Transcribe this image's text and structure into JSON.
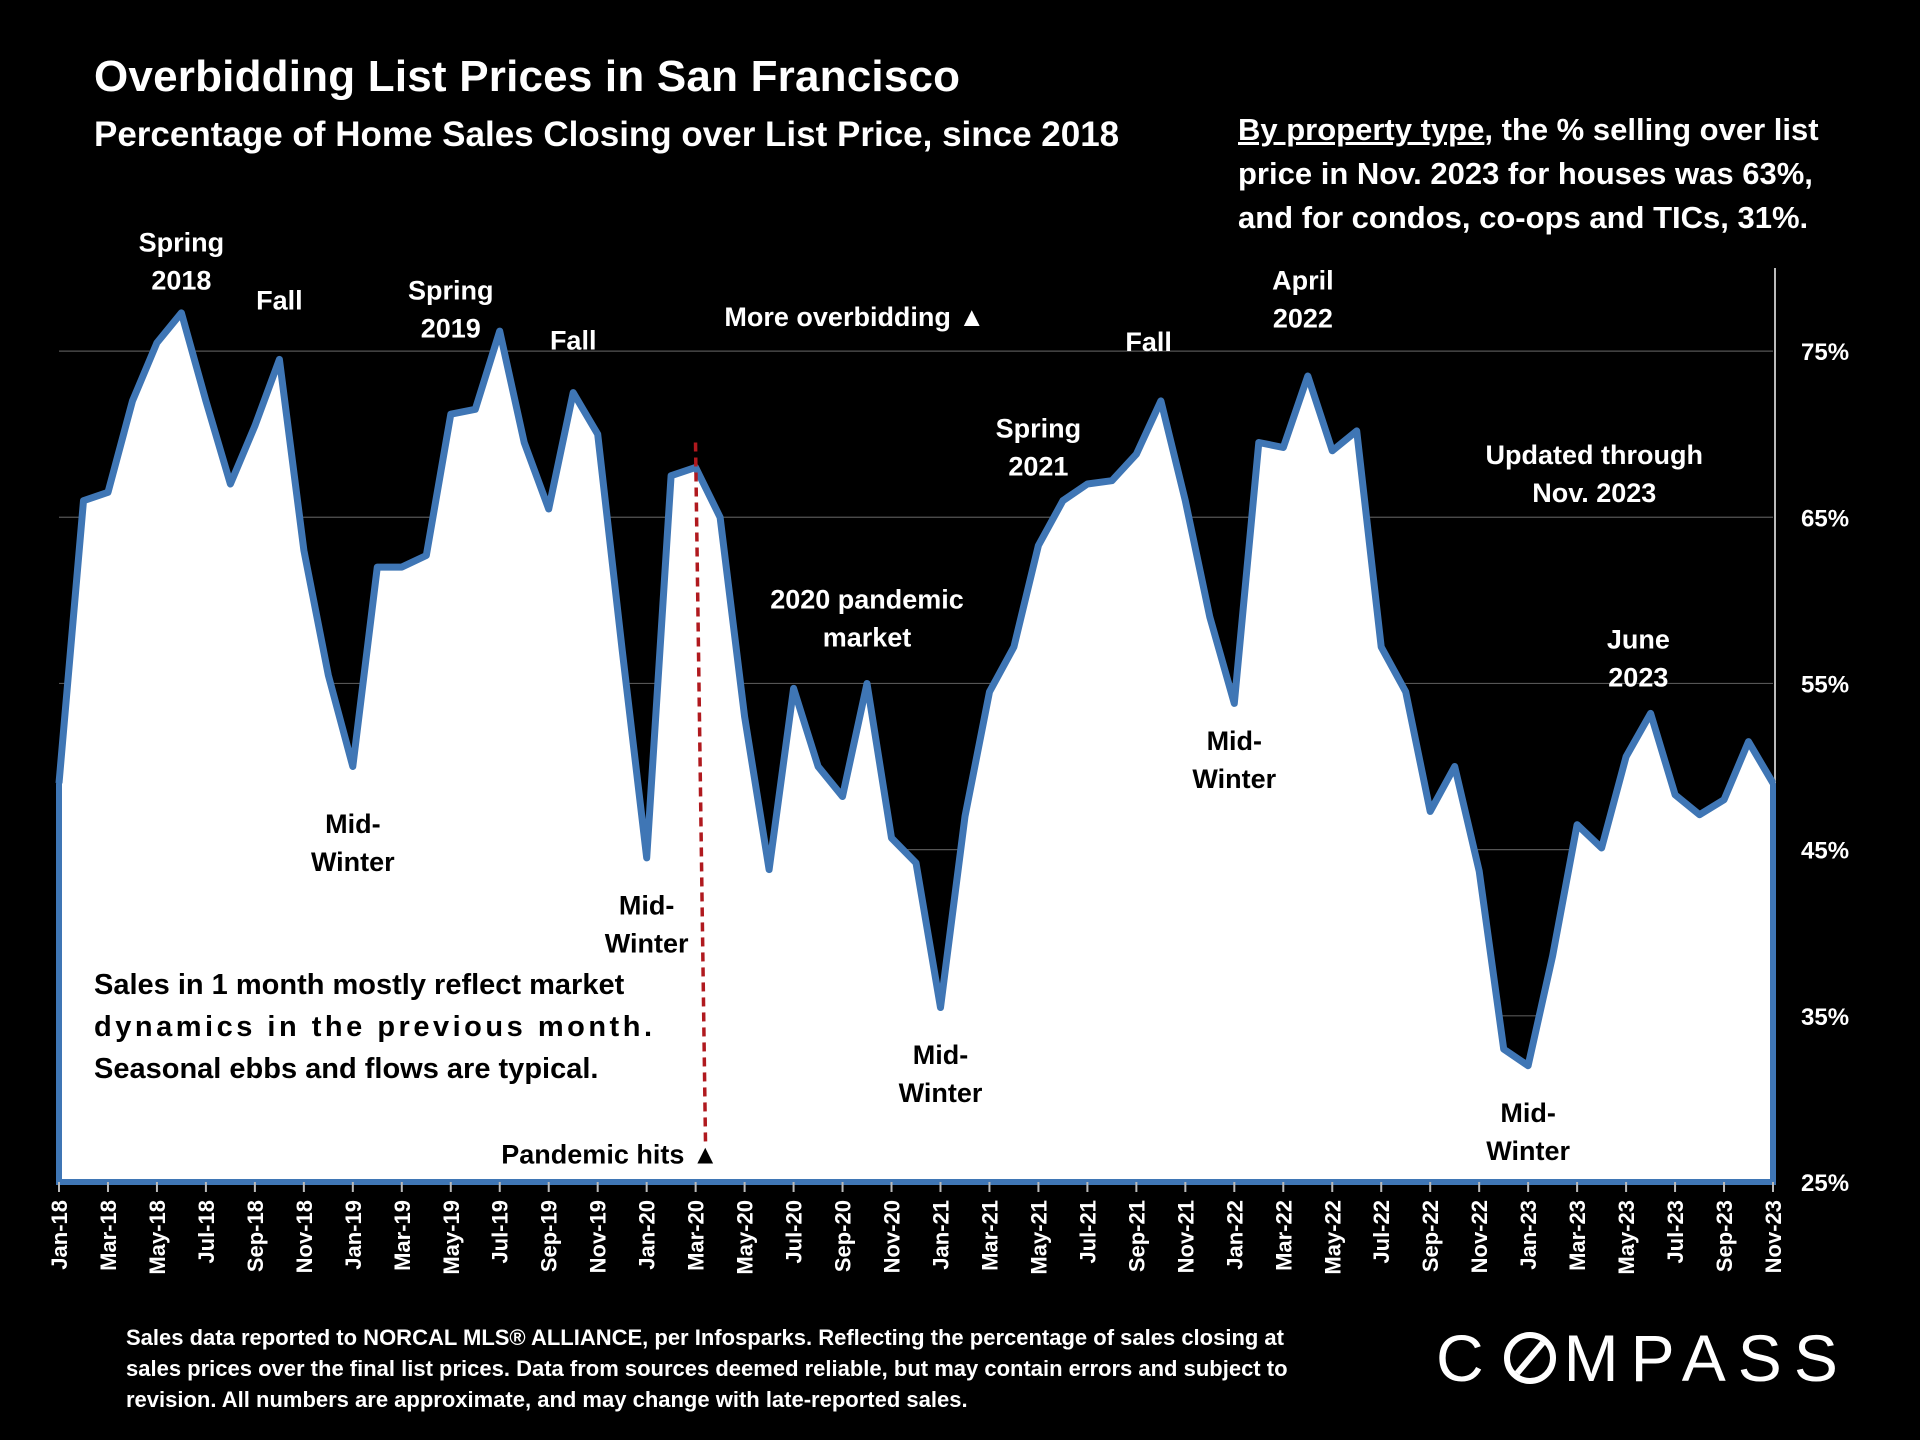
{
  "chart_data": {
    "type": "area",
    "title": "Overbidding List Prices in San Francisco",
    "subtitle": "Percentage of Home Sales Closing over List Price, since 2018",
    "y_unit": "%",
    "ylim": [
      25,
      80
    ],
    "y_ticks": [
      "25%",
      "35%",
      "45%",
      "55%",
      "65%",
      "75%"
    ],
    "grid": true,
    "x_tick_labels": [
      "Jan-18",
      "Mar-18",
      "May-18",
      "Jul-18",
      "Sep-18",
      "Nov-18",
      "Jan-19",
      "Mar-19",
      "May-19",
      "Jul-19",
      "Sep-19",
      "Nov-19",
      "Jan-20",
      "Mar-20",
      "May-20",
      "Jul-20",
      "Sep-20",
      "Nov-20",
      "Jan-21",
      "Mar-21",
      "May-21",
      "Jul-21",
      "Sep-21",
      "Nov-21",
      "Jan-22",
      "Mar-22",
      "May-22",
      "Jul-22",
      "Sep-22",
      "Nov-22",
      "Jan-23",
      "Mar-23",
      "May-23",
      "Jul-23",
      "Sep-23",
      "Nov-23"
    ],
    "series": [
      {
        "name": "",
        "color": "#3f76b5",
        "fill": "#ffffff",
        "values": [
          49,
          66,
          66.5,
          72,
          75.5,
          77.3,
          72,
          67,
          70.5,
          74.5,
          63,
          55.5,
          50,
          62,
          62,
          62.7,
          71.2,
          71.5,
          76.2,
          69.5,
          65.5,
          72.5,
          70,
          57,
          44.5,
          67.5,
          68,
          65,
          53,
          43.8,
          54.7,
          50,
          48.2,
          55,
          45.7,
          44.2,
          35.5,
          47,
          54.5,
          57.2,
          63.3,
          66,
          67,
          67.2,
          68.8,
          72,
          66,
          59,
          53.8,
          69.5,
          69.2,
          73.5,
          69,
          70.2,
          57.2,
          54.5,
          47.3,
          50,
          43.7,
          33,
          32,
          38.6,
          46.5,
          45.1,
          50.6,
          53.2,
          48.3,
          47.1,
          48,
          51.5,
          49
        ]
      }
    ],
    "annotations": [
      {
        "text": [
          "Spring",
          "2018"
        ],
        "x_index": 5,
        "y": 81
      },
      {
        "text": [
          "Fall"
        ],
        "x_index": 9,
        "y": 77.5
      },
      {
        "text": [
          "Mid-",
          "Winter"
        ],
        "x_index": 12,
        "y": 46
      },
      {
        "text": [
          "Spring",
          "2019"
        ],
        "x_index": 16,
        "y": 78.1
      },
      {
        "text": [
          "Fall"
        ],
        "x_index": 21,
        "y": 75.1
      },
      {
        "text": [
          "Mid-",
          "Winter"
        ],
        "x_index": 24,
        "y": 41.1
      },
      {
        "text": [
          "2020 pandemic",
          "market"
        ],
        "x_index": 33,
        "y": 59.5
      },
      {
        "text": [
          "Mid-",
          "Winter"
        ],
        "x_index": 36,
        "y": 32.1
      },
      {
        "text": [
          "Spring",
          "2021"
        ],
        "x_index": 40,
        "y": 69.8
      },
      {
        "text": [
          "Fall"
        ],
        "x_index": 44.5,
        "y": 75
      },
      {
        "text": [
          "Mid-",
          "Winter"
        ],
        "x_index": 48,
        "y": 51
      },
      {
        "text": [
          "April",
          "2022"
        ],
        "x_index": 50.8,
        "y": 78.7
      },
      {
        "text": [
          "Updated through",
          "Nov. 2023"
        ],
        "x_index": 62.7,
        "y": 68.2
      },
      {
        "text": [
          "June",
          "2023"
        ],
        "x_index": 64.5,
        "y": 57.1
      },
      {
        "text": [
          "Mid-",
          "Winter"
        ],
        "x_index": 60,
        "y": 28.6
      }
    ],
    "markers": {
      "more_overbidding": "More overbidding ▲",
      "pandemic_hits": "Pandemic hits ▲",
      "pandemic_x_index": 26.2
    },
    "note_lines": [
      "Sales in 1 month mostly reflect market",
      "dynamics in the previous month.",
      "Seasonal ebbs and flows are typical."
    ]
  },
  "side_note": {
    "underlined": "By property type",
    "rest": ", the % selling over list price in Nov. 2023 for houses was 63%, and for condos, co-ops and TICs, 31%."
  },
  "footnote": "Sales data reported to NORCAL MLS® ALLIANCE, per Infosparks. Reflecting the percentage of sales closing at sales prices over the final list prices. Data from sources deemed reliable, but may contain errors and subject to revision. All numbers are approximate, and may change with late-reported sales.",
  "logo": {
    "before": "C",
    "after": "MPASS"
  }
}
